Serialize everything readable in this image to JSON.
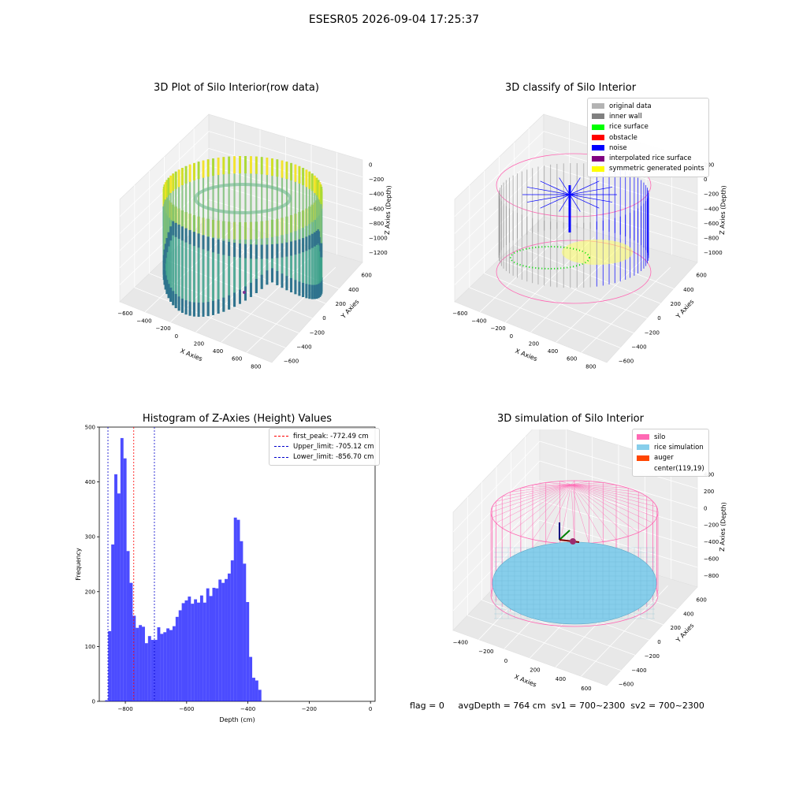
{
  "figure_title": "ESESR05 2026-09-04 17:25:37",
  "panels": {
    "raw": {
      "title": "3D Plot of Silo Interior(row data)",
      "xlabel": "X Axies",
      "ylabel": "Y Axies",
      "zlabel": "Z Axies (Depth)",
      "xticks": [
        "−600",
        "−400",
        "−200",
        "0",
        "200",
        "400",
        "600",
        "800"
      ],
      "yticks": [
        "−600",
        "−400",
        "−200",
        "0",
        "200",
        "400",
        "600"
      ],
      "zticks": [
        "0",
        "−200",
        "−400",
        "−600",
        "−800",
        "−1000",
        "−1200"
      ]
    },
    "classify": {
      "title": "3D classify of Silo Interior",
      "xlabel": "X Axies",
      "ylabel": "Y Axies",
      "zlabel": "Z Axies (Depth)",
      "xticks": [
        "−600",
        "−400",
        "−200",
        "0",
        "200",
        "400",
        "600",
        "800"
      ],
      "yticks": [
        "−600",
        "−400",
        "−200",
        "0",
        "200",
        "400",
        "600"
      ],
      "zticks": [
        "200",
        "0",
        "−200",
        "−400",
        "−600",
        "−800",
        "−1000"
      ],
      "legend": [
        {
          "label": "original data",
          "color": "#b3b3b3"
        },
        {
          "label": "inner wall",
          "color": "#808080"
        },
        {
          "label": "rice surface",
          "color": "#00ff00"
        },
        {
          "label": "obstacle",
          "color": "#ff0000"
        },
        {
          "label": "noise",
          "color": "#0000ff"
        },
        {
          "label": "interpolated rice surface",
          "color": "#800080"
        },
        {
          "label": "symmetric generated points",
          "color": "#ffff00"
        }
      ]
    },
    "simulation": {
      "title": "3D simulation of Silo Interior",
      "xlabel": "X Axies",
      "ylabel": "Y Axies",
      "zlabel": "Z Axies (Depth)",
      "xticks": [
        "−400",
        "−200",
        "0",
        "200",
        "400",
        "600"
      ],
      "yticks": [
        "−600",
        "−400",
        "−200",
        "0",
        "200",
        "400",
        "600"
      ],
      "zticks": [
        "400",
        "200",
        "0",
        "−200",
        "−400",
        "−600",
        "−800"
      ],
      "legend": [
        {
          "label": "silo",
          "color": "#ff69b4"
        },
        {
          "label": "rice simulation",
          "color": "#87ceeb"
        },
        {
          "label": "auger",
          "color": "#ff4500"
        },
        {
          "label": "center(119,19)",
          "color": ""
        }
      ]
    }
  },
  "footer": {
    "flag": "flag = 0",
    "avg_depth": "avgDepth = 764 cm",
    "sv1": "sv1 = 700~2300",
    "sv2": "sv2 = 700~2300"
  },
  "chart_data": [
    {
      "type": "histogram",
      "title": "Histogram of Z-Axies (Height) Values",
      "xlabel": "Depth (cm)",
      "ylabel": "Frequency",
      "xlim": [
        -885,
        15
      ],
      "ylim": [
        0,
        500
      ],
      "xticks": [
        -800,
        -600,
        -400,
        -200,
        0
      ],
      "yticks": [
        0,
        100,
        200,
        300,
        400,
        500
      ],
      "bar_color": "#0000ff",
      "bin_start": -866,
      "bin_width": 10,
      "values": [
        2,
        128,
        286,
        414,
        379,
        480,
        443,
        274,
        216,
        156,
        134,
        139,
        136,
        106,
        119,
        112,
        112,
        135,
        123,
        126,
        133,
        130,
        137,
        154,
        166,
        179,
        184,
        191,
        178,
        186,
        180,
        193,
        180,
        206,
        192,
        207,
        206,
        222,
        216,
        223,
        233,
        257,
        335,
        331,
        292,
        251,
        181,
        81,
        43,
        38,
        21
      ],
      "vlines": [
        {
          "label": "first_peak: -772.49 cm",
          "x": -772.49,
          "color": "#ff0000"
        },
        {
          "label": "Upper_limit: -705.12 cm",
          "x": -705.12,
          "color": "#0000cc"
        },
        {
          "label": "Lower_limit: -856.70 cm",
          "x": -856.7,
          "color": "#0000cc"
        }
      ]
    }
  ]
}
